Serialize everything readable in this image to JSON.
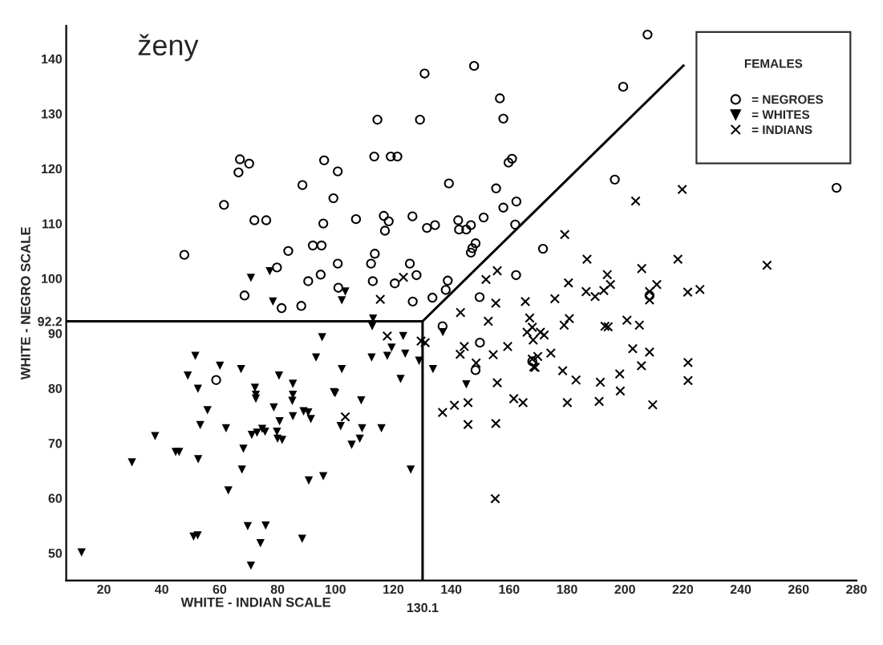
{
  "chart_data": {
    "type": "scatter",
    "title": "ženy",
    "xlabel": "WHITE - INDIAN SCALE",
    "ylabel": "WHITE - NEGRO SCALE",
    "legend_title": "FEMALES",
    "legend": "top right",
    "xlim": [
      7,
      280
    ],
    "ylim": [
      45,
      146
    ],
    "xticks": [
      20,
      40,
      60,
      80,
      100,
      120,
      140,
      160,
      180,
      200,
      220,
      240,
      260,
      280
    ],
    "annotations": [
      {
        "text": "130.1",
        "x": 130.1,
        "y": 45
      }
    ],
    "yticks": [
      50,
      60,
      70,
      80,
      90,
      92.2,
      100,
      110,
      120,
      130,
      140
    ],
    "series": [
      {
        "name": "= NEGROES",
        "color": "#000000",
        "marker": "circle",
        "x": [
          67.0,
          70.2,
          66.5,
          88.6,
          61.5,
          72.0,
          76.1,
          47.8,
          83.7,
          79.8,
          68.6,
          81.4,
          88.2,
          130.8,
          147.9,
          156.8,
          114.5,
          129.2,
          158.0,
          113.4,
          119.1,
          121.4,
          96.1,
          100.8,
          161.0,
          159.8,
          139.2,
          155.5,
          99.3,
          162.5,
          158.0,
          95.8,
          107.1,
          116.7,
          118.4,
          117.1,
          126.6,
          131.6,
          134.4,
          142.4,
          146.8,
          142.7,
          145.2,
          151.2,
          162.1,
          92.2,
          95.2,
          113.6,
          148.4,
          147.3,
          146.8,
          171.7,
          100.8,
          112.3,
          125.7,
          94.9,
          90.6,
          128.0,
          112.9,
          120.5,
          138.8,
          138.1,
          162.4,
          101.0,
          126.7,
          133.5,
          149.8,
          137.0,
          149.9,
          148.4,
          168.0,
          207.8,
          199.4,
          196.5,
          273.1,
          208.5,
          58.8
        ],
        "values": [
          121.7,
          120.9,
          119.3,
          117.0,
          113.4,
          110.6,
          110.6,
          104.3,
          105.0,
          102.0,
          96.9,
          94.6,
          95.0,
          137.3,
          138.7,
          132.8,
          128.9,
          128.9,
          129.1,
          122.2,
          122.2,
          122.2,
          121.5,
          119.5,
          121.8,
          121.1,
          117.3,
          116.4,
          114.6,
          114.0,
          112.9,
          110.0,
          110.8,
          111.4,
          110.4,
          108.7,
          111.3,
          109.2,
          109.7,
          110.6,
          109.7,
          108.9,
          108.9,
          111.1,
          109.8,
          106.0,
          106.0,
          104.5,
          106.4,
          105.5,
          104.7,
          105.4,
          102.7,
          102.7,
          102.7,
          100.7,
          99.5,
          100.6,
          99.5,
          99.1,
          99.6,
          97.9,
          100.6,
          98.3,
          95.8,
          96.5,
          96.6,
          91.3,
          88.3,
          83.3,
          84.9,
          144.4,
          134.9,
          118.0,
          116.5,
          96.9,
          81.5
        ]
      },
      {
        "name": "= WHITES",
        "color": "#000000",
        "marker": "triangle",
        "x": [
          70.8,
          77.3,
          78.4,
          103.4,
          102.2,
          113.0,
          112.7,
          51.6,
          49.0,
          60.1,
          67.4,
          52.5,
          80.5,
          85.3,
          72.2,
          72.5,
          72.5,
          85.3,
          85.1,
          78.7,
          55.8,
          85.3,
          89.0,
          90.6,
          91.5,
          80.7,
          53.3,
          62.2,
          71.1,
          72.9,
          74.7,
          75.7,
          79.8,
          80.0,
          81.6,
          37.7,
          44.8,
          46.0,
          68.2,
          29.7,
          52.6,
          67.7,
          63.0,
          90.8,
          69.7,
          75.9,
          51.0,
          52.4,
          74.1,
          88.5,
          70.8,
          12.3,
          95.4,
          93.3,
          102.2,
          99.5,
          99.9,
          108.9,
          112.5,
          117.9,
          119.4,
          123.4,
          124.1,
          122.5,
          128.9,
          133.7,
          137.1,
          145.2,
          101.8,
          109.2,
          115.9,
          108.4,
          105.6,
          126.0,
          95.8
        ],
        "values": [
          100.1,
          101.3,
          95.8,
          97.6,
          96.0,
          92.7,
          91.3,
          85.9,
          82.3,
          84.1,
          83.5,
          79.9,
          82.3,
          80.8,
          80.1,
          78.8,
          78.1,
          78.8,
          77.7,
          76.5,
          76.0,
          74.9,
          75.8,
          75.6,
          74.4,
          74.0,
          73.3,
          72.7,
          71.5,
          71.9,
          72.6,
          72.1,
          72.1,
          70.8,
          70.6,
          71.3,
          68.4,
          68.4,
          69.0,
          66.5,
          67.1,
          65.2,
          61.4,
          63.2,
          54.9,
          55.0,
          53.0,
          53.2,
          51.8,
          52.6,
          47.7,
          50.1,
          89.3,
          85.6,
          83.5,
          79.3,
          79.1,
          77.8,
          85.6,
          85.9,
          87.4,
          89.5,
          86.3,
          81.7,
          85.0,
          83.5,
          90.2,
          80.7,
          73.1,
          72.7,
          72.7,
          70.8,
          69.7,
          65.2,
          64.0
        ]
      },
      {
        "name": "= INDIANS",
        "color": "#000000",
        "marker": "cross",
        "x": [
          123.5,
          115.5,
          179.2,
          155.9,
          152.0,
          180.5,
          155.4,
          165.6,
          175.8,
          143.2,
          152.8,
          167.1,
          180.8,
          179.0,
          117.9,
          129.6,
          131.0,
          168.0,
          166.2,
          170.8,
          172.1,
          168.3,
          144.5,
          143.1,
          154.5,
          159.5,
          174.4,
          169.9,
          168.0,
          168.5,
          169.0,
          148.6,
          178.5,
          183.1,
          155.9,
          137.0,
          141.1,
          145.8,
          161.6,
          164.8,
          180.1,
          145.8,
          155.4,
          155.2,
          103.4,
          219.8,
          203.7,
          186.9,
          218.3,
          249.1,
          205.8,
          193.9,
          195.0,
          186.6,
          189.7,
          192.7,
          211.0,
          208.5,
          208.5,
          221.7,
          225.9,
          193.1,
          194.2,
          200.7,
          205.0,
          202.7,
          208.5,
          205.7,
          221.8,
          221.8,
          198.2,
          191.5,
          198.4,
          191.1,
          209.6
        ],
        "values": [
          100.2,
          96.2,
          108.0,
          101.4,
          99.8,
          99.2,
          95.5,
          95.8,
          96.3,
          93.8,
          92.2,
          92.8,
          92.7,
          91.5,
          89.5,
          88.6,
          88.3,
          91.1,
          90.2,
          90.2,
          89.7,
          88.8,
          87.6,
          86.2,
          86.1,
          87.6,
          86.4,
          85.8,
          85.3,
          83.9,
          83.8,
          84.6,
          83.2,
          81.5,
          81.0,
          75.6,
          76.9,
          77.4,
          78.1,
          77.4,
          77.4,
          73.4,
          73.6,
          59.9,
          74.8,
          116.2,
          114.1,
          103.5,
          103.5,
          102.4,
          101.8,
          100.7,
          98.9,
          97.6,
          96.7,
          97.8,
          98.9,
          97.6,
          96.1,
          97.5,
          98.0,
          91.3,
          91.2,
          92.4,
          91.5,
          87.2,
          86.6,
          84.1,
          84.7,
          81.4,
          82.6,
          81.1,
          79.5,
          77.6,
          77.0
        ]
      },
      {
        "type": "line",
        "color": "#000000",
        "x": [
          7,
          130.1,
          220.5
        ],
        "values": [
          92.2,
          92.2,
          138.9
        ]
      },
      {
        "type": "line",
        "color": "#000000",
        "x": [
          130.1,
          130.1
        ],
        "values": [
          92.2,
          45
        ]
      }
    ]
  }
}
